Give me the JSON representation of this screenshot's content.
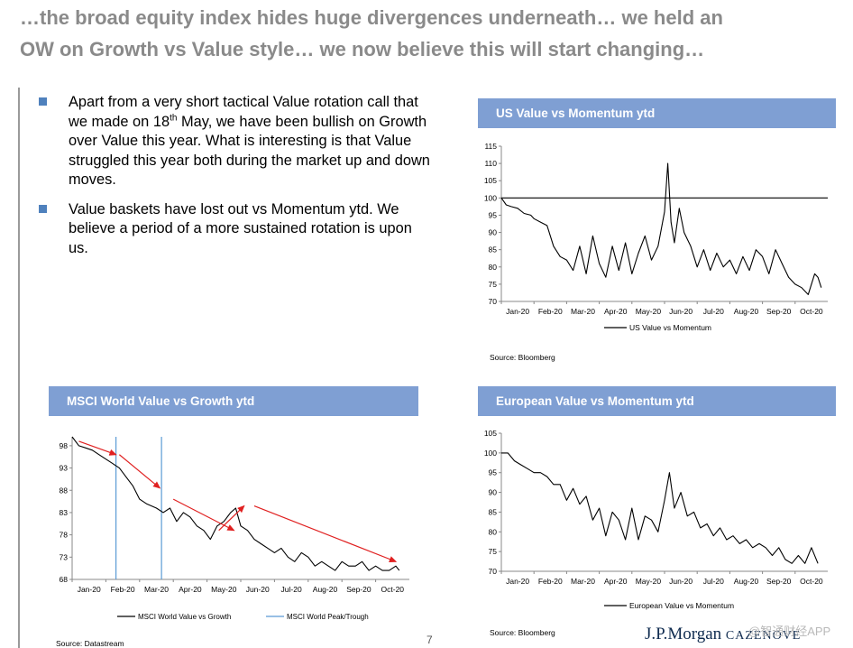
{
  "headline": {
    "line1": "…the broad equity index hides huge divergences underneath… we held an",
    "line2": "OW on Growth vs Value style… we now believe this will start changing…"
  },
  "bullets": [
    {
      "text_before": "Apart from a very short tactical Value rotation call that we made on 18",
      "sup": "th",
      "text_after": " May, we have been bullish on Growth over Value this year. What is interesting is that Value struggled this year both during the market up and down moves."
    },
    {
      "text": "Value baskets have lost out vs Momentum ytd. We believe a period of a more sustained rotation is upon us."
    }
  ],
  "charts": {
    "us": {
      "title": "US Value vs Momentum ytd",
      "source": "Source:  Bloomberg",
      "legend": "US Value vs Momentum"
    },
    "msci": {
      "title": "MSCI World Value vs Growth ytd",
      "source": "Source:  Datastream",
      "legend1": "MSCI World Value vs Growth",
      "legend2": "MSCI World Peak/Trough"
    },
    "eu": {
      "title": "European Value vs Momentum ytd",
      "source": "Source:  Bloomberg",
      "legend": "European Value vs Momentum"
    }
  },
  "footer": {
    "page_number": "7",
    "brand_main": "J.P.Morgan",
    "brand_sub": "CAZENOVE",
    "watermark": "@智通财经APP"
  },
  "colors": {
    "banner": "#7f9fd3",
    "bullet": "#4f81bd",
    "arrow": "#e02020",
    "peak_line": "#5b9bd5",
    "brand": "#0f2b4f"
  },
  "chart_data": [
    {
      "type": "line",
      "title": "US Value vs Momentum ytd",
      "categories": [
        "Jan-20",
        "Feb-20",
        "Mar-20",
        "Apr-20",
        "May-20",
        "Jun-20",
        "Jul-20",
        "Aug-20",
        "Sep-20",
        "Oct-20"
      ],
      "ylim": [
        70,
        115
      ],
      "yticks": [
        70,
        75,
        80,
        85,
        90,
        95,
        100,
        105,
        110,
        115
      ],
      "reference_line": 100,
      "series": [
        {
          "name": "US Value vs Momentum",
          "x": [
            0,
            0.15,
            0.3,
            0.5,
            0.7,
            0.9,
            1,
            1.2,
            1.4,
            1.6,
            1.8,
            2,
            2.2,
            2.4,
            2.6,
            2.8,
            3,
            3.2,
            3.4,
            3.6,
            3.8,
            4,
            4.2,
            4.4,
            4.6,
            4.8,
            5,
            5.1,
            5.2,
            5.3,
            5.45,
            5.6,
            5.8,
            6,
            6.2,
            6.4,
            6.6,
            6.8,
            7,
            7.2,
            7.4,
            7.6,
            7.8,
            8,
            8.2,
            8.4,
            8.6,
            8.8,
            9,
            9.2,
            9.4,
            9.5,
            9.6,
            9.7,
            9.8
          ],
          "values": [
            100,
            98,
            97.5,
            97,
            95.5,
            95,
            94,
            93,
            92,
            86,
            83,
            82,
            79,
            86,
            78,
            89,
            81,
            77,
            86,
            79,
            87,
            78,
            84,
            89,
            82,
            86,
            96,
            110,
            93,
            87,
            97,
            90,
            86,
            80,
            85,
            79,
            84,
            80,
            82,
            78,
            83,
            79,
            85,
            83,
            78,
            85,
            81,
            77,
            75,
            74,
            72,
            75,
            78,
            77,
            74
          ]
        }
      ]
    },
    {
      "type": "line",
      "title": "MSCI World Value vs Growth ytd",
      "categories": [
        "Jan-20",
        "Feb-20",
        "Mar-20",
        "Apr-20",
        "May-20",
        "Jun-20",
        "Jul-20",
        "Aug-20",
        "Sep-20",
        "Oct-20"
      ],
      "ylim": [
        68,
        100
      ],
      "yticks": [
        68,
        73,
        78,
        83,
        88,
        93,
        98
      ],
      "series": [
        {
          "name": "MSCI World Value vs Growth",
          "x": [
            0,
            0.2,
            0.4,
            0.6,
            0.8,
            1,
            1.2,
            1.4,
            1.6,
            1.8,
            2,
            2.2,
            2.5,
            2.7,
            2.9,
            3.1,
            3.3,
            3.5,
            3.7,
            3.9,
            4.1,
            4.3,
            4.5,
            4.7,
            4.85,
            5,
            5.2,
            5.4,
            5.6,
            5.8,
            6,
            6.2,
            6.4,
            6.6,
            6.8,
            7,
            7.2,
            7.4,
            7.6,
            7.8,
            8,
            8.2,
            8.4,
            8.6,
            8.8,
            9,
            9.2,
            9.4,
            9.6,
            9.7
          ],
          "values": [
            100,
            98,
            97.5,
            97,
            96,
            95,
            94,
            93,
            91,
            89,
            86,
            85,
            84,
            83,
            84,
            81,
            83,
            82,
            80,
            79,
            77,
            80,
            81,
            83,
            84,
            80,
            79,
            77,
            76,
            75,
            74,
            75,
            73,
            72,
            74,
            73,
            71,
            72,
            71,
            70,
            72,
            71,
            71,
            72,
            70,
            71,
            70,
            70,
            71,
            70
          ]
        }
      ],
      "peak_trough_x": [
        1.3,
        2.65
      ],
      "annotations": "Red trend arrows"
    },
    {
      "type": "line",
      "title": "European Value vs Momentum ytd",
      "categories": [
        "Jan-20",
        "Feb-20",
        "Mar-20",
        "Apr-20",
        "May-20",
        "Jun-20",
        "Jul-20",
        "Aug-20",
        "Sep-20",
        "Oct-20"
      ],
      "ylim": [
        70,
        105
      ],
      "yticks": [
        70,
        75,
        80,
        85,
        90,
        95,
        100,
        105
      ],
      "series": [
        {
          "name": "European Value vs Momentum",
          "x": [
            0,
            0.2,
            0.4,
            0.6,
            0.8,
            1,
            1.2,
            1.4,
            1.6,
            1.8,
            2,
            2.2,
            2.4,
            2.6,
            2.8,
            3,
            3.2,
            3.4,
            3.6,
            3.8,
            4,
            4.2,
            4.4,
            4.6,
            4.8,
            5,
            5.15,
            5.3,
            5.5,
            5.7,
            5.9,
            6.1,
            6.3,
            6.5,
            6.7,
            6.9,
            7.1,
            7.3,
            7.5,
            7.7,
            7.9,
            8.1,
            8.3,
            8.5,
            8.7,
            8.9,
            9.1,
            9.3,
            9.5,
            9.7
          ],
          "values": [
            100,
            100,
            98,
            97,
            96,
            95,
            95,
            94,
            92,
            92,
            88,
            91,
            87,
            89,
            83,
            86,
            79,
            85,
            83,
            78,
            86,
            78,
            84,
            83,
            80,
            88,
            95,
            86,
            90,
            84,
            85,
            81,
            82,
            79,
            81,
            78,
            79,
            77,
            78,
            76,
            77,
            76,
            74,
            76,
            73,
            72,
            74,
            72,
            76,
            72
          ]
        }
      ]
    }
  ]
}
